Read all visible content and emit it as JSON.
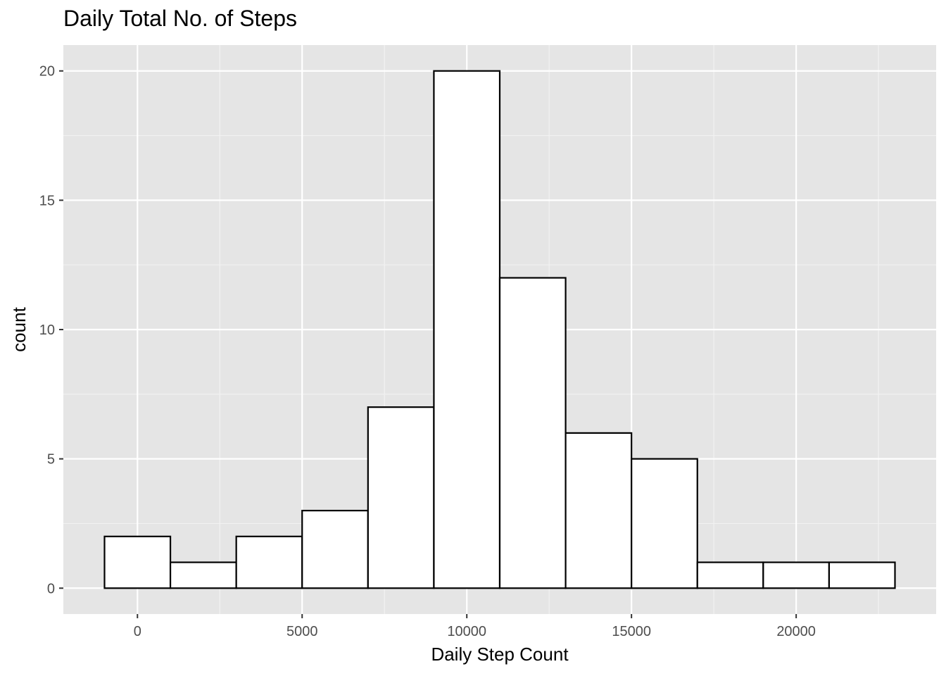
{
  "chart_data": {
    "type": "bar",
    "title": "Daily Total No. of Steps",
    "xlabel": "Daily Step Count",
    "ylabel": "count",
    "xlim": [
      -2250,
      24250
    ],
    "ylim": [
      -1,
      21
    ],
    "x_ticks": [
      0,
      5000,
      10000,
      15000,
      20000
    ],
    "x_tick_labels": [
      "0",
      "5000",
      "10000",
      "15000",
      "20000"
    ],
    "y_ticks": [
      0,
      5,
      10,
      15,
      20
    ],
    "y_tick_labels": [
      "0",
      "5",
      "10",
      "15",
      "20"
    ],
    "bin_width": 2000,
    "bins": [
      {
        "x0": -1000,
        "x1": 1000,
        "count": 2
      },
      {
        "x0": 1000,
        "x1": 3000,
        "count": 1
      },
      {
        "x0": 3000,
        "x1": 5000,
        "count": 2
      },
      {
        "x0": 5000,
        "x1": 7000,
        "count": 3
      },
      {
        "x0": 7000,
        "x1": 9000,
        "count": 7
      },
      {
        "x0": 9000,
        "x1": 11000,
        "count": 20
      },
      {
        "x0": 11000,
        "x1": 13000,
        "count": 12
      },
      {
        "x0": 13000,
        "x1": 15000,
        "count": 6
      },
      {
        "x0": 15000,
        "x1": 17000,
        "count": 5
      },
      {
        "x0": 17000,
        "x1": 19000,
        "count": 1
      },
      {
        "x0": 19000,
        "x1": 21000,
        "count": 1
      },
      {
        "x0": 21000,
        "x1": 23000,
        "count": 1
      }
    ],
    "grid": true,
    "colors": {
      "panel_background": "#e5e5e5",
      "grid_major": "#ffffff",
      "grid_minor": "#f2f2f2",
      "bar_fill": "#ffffff",
      "bar_stroke": "#000000",
      "tick_color": "#333333"
    }
  }
}
